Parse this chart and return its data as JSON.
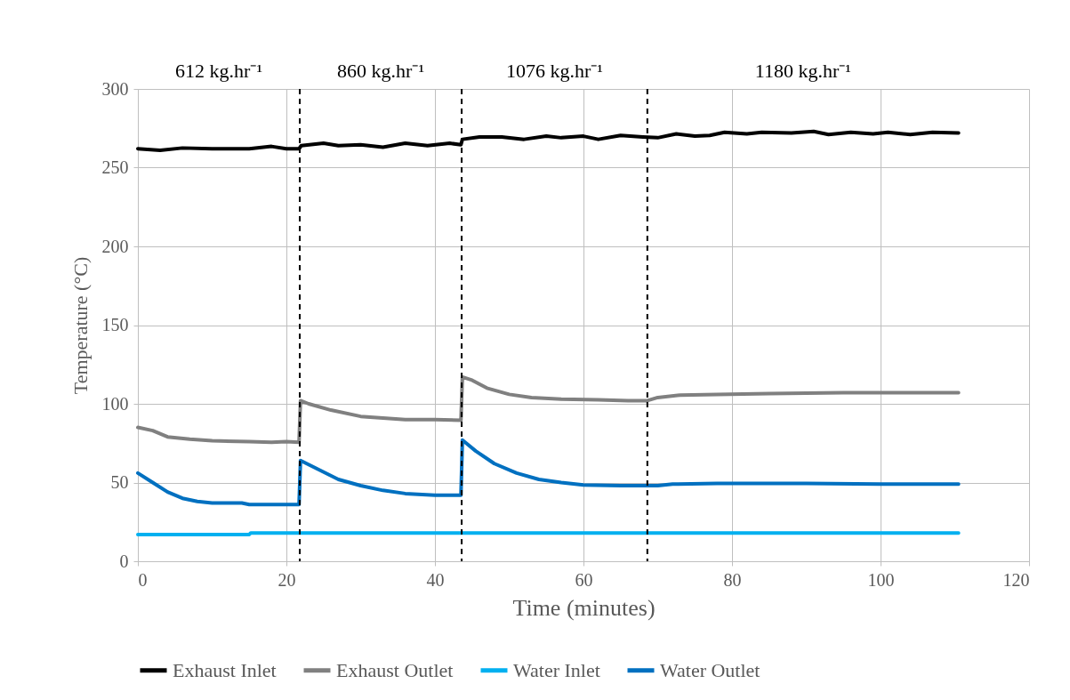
{
  "chart_data": {
    "type": "line",
    "xlabel": "Time (minutes)",
    "ylabel": "Temperature (°C)",
    "xlim": [
      0,
      120
    ],
    "xticks": [
      0,
      20,
      40,
      60,
      80,
      100,
      120
    ],
    "ylim": [
      0,
      300
    ],
    "yticks": [
      0,
      50,
      100,
      150,
      200,
      250,
      300
    ],
    "grid": true,
    "legend": "bottom",
    "annotations": [
      "612 kg.hr⁻¹",
      "860 kg.hr⁻¹",
      "1076 kg.hr⁻¹",
      "1180 kg.hr⁻¹"
    ],
    "ref_lines": [
      {
        "axis": "x",
        "value": 21.8,
        "color": "#000000",
        "line_style": "dashed"
      },
      {
        "axis": "x",
        "value": 43.6,
        "color": "#000000",
        "line_style": "dashed"
      },
      {
        "axis": "x",
        "value": 68.6,
        "color": "#000000",
        "line_style": "dashed"
      }
    ],
    "series": [
      {
        "name": "Exhaust Inlet",
        "color": "#000000",
        "x": [
          0,
          3,
          6,
          10,
          15,
          18,
          20,
          21.7,
          22,
          25,
          27,
          30,
          33,
          36,
          39,
          42,
          43.5,
          43.7,
          46,
          49,
          52,
          55,
          57,
          60,
          62,
          65,
          68,
          70,
          72.5,
          75,
          77,
          79,
          82,
          84,
          88,
          91,
          93,
          96,
          99,
          101,
          104,
          107,
          110.5
        ],
        "values": [
          262,
          261,
          262.5,
          262,
          262,
          263.5,
          262,
          262,
          264,
          265.5,
          264,
          264.5,
          263,
          265.5,
          264,
          265.5,
          264.5,
          268,
          269.5,
          269.5,
          268,
          270,
          269,
          270,
          268,
          270.5,
          269.5,
          269,
          271.5,
          270,
          270.5,
          272.5,
          271.5,
          272.5,
          272,
          273,
          271,
          272.5,
          271.5,
          272.5,
          271,
          272.5,
          272
        ]
      },
      {
        "name": "Exhaust Outlet",
        "color": "#808080",
        "x": [
          0,
          2,
          4,
          7,
          10,
          15,
          18,
          20,
          21.7,
          21.9,
          23,
          26,
          30,
          33,
          36,
          40,
          43.5,
          43.7,
          45,
          47,
          50,
          53,
          57,
          62,
          66,
          68.6,
          70,
          73,
          78,
          85,
          95,
          110.5
        ],
        "values": [
          85,
          83,
          79,
          77.5,
          76.5,
          76,
          75.5,
          76,
          75.5,
          102,
          100,
          96,
          92,
          91,
          90,
          90,
          89.5,
          117,
          115,
          110,
          106,
          104,
          103,
          102.5,
          102,
          102,
          104,
          105.5,
          106,
          106.5,
          107,
          107
        ]
      },
      {
        "name": "Water Inlet",
        "color": "#00b0f0",
        "x": [
          0,
          15,
          15.2,
          110.5
        ],
        "values": [
          17,
          17,
          18,
          18
        ]
      },
      {
        "name": "Water Outlet",
        "color": "#0070c0",
        "x": [
          0,
          2,
          4,
          6,
          8,
          10,
          14,
          15,
          21.7,
          21.9,
          24,
          27,
          30,
          33,
          36,
          40,
          43.5,
          43.7,
          45.5,
          48,
          51,
          54,
          57,
          60,
          65,
          70,
          72,
          78,
          90,
          100,
          110.5
        ],
        "values": [
          56,
          50,
          44,
          40,
          38,
          37,
          37,
          36,
          36,
          64,
          59,
          52,
          48,
          45,
          43,
          42,
          42,
          77,
          70,
          62,
          56,
          52,
          50,
          48.5,
          48,
          48,
          49,
          49.5,
          49.5,
          49,
          49
        ]
      }
    ]
  }
}
